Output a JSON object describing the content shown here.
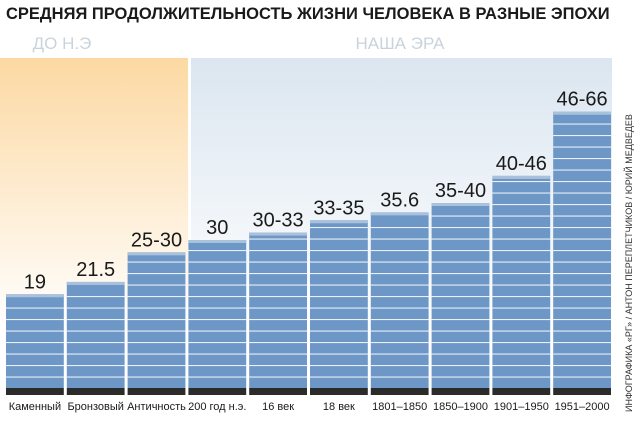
{
  "title": "СРЕДНЯЯ ПРОДОЛЖИТЕЛЬНОСТЬ ЖИЗНИ ЧЕЛОВЕКА В РАЗНЫЕ ЭПОХИ",
  "eras": {
    "bc": "ДО Н.Э",
    "ad": "НАША ЭРА"
  },
  "credit": "ИНФОГРАФИКА «РГ» / АНТОН ПЕРЕПЛЕТЧИКОВ / ЮРИЙ МЕДВЕДЕВ",
  "colors": {
    "bar": "#6d97c6",
    "bar_stripe": "#ffffff",
    "bar_cap": "#a9c1db",
    "base": "#2b2b2b",
    "bc_band": "#fde7c2",
    "ad_band": "#e6eef5",
    "era_text": "#c7d4e0",
    "label": "#1a1a1a"
  },
  "chart_data": {
    "type": "bar",
    "title": "СРЕДНЯЯ ПРОДОЛЖИТЕЛЬНОСТЬ ЖИЗНИ ЧЕЛОВЕКА В РАЗНЫЕ ЭПОХИ",
    "categories": [
      "Каменный",
      "Бронзовый",
      "Античность",
      "200 год н.э.",
      "16 век",
      "18 век",
      "1801–1850",
      "1850–1900",
      "1901–1950",
      "1951–2000"
    ],
    "value_labels": [
      "19",
      "21.5",
      "25-30",
      "30",
      "30-33",
      "33-35",
      "35.6",
      "35-40",
      "40-46",
      "46-66"
    ],
    "values": [
      19,
      21.5,
      27.5,
      30,
      31.5,
      34,
      35.6,
      37.5,
      43,
      56
    ],
    "xlabel": "",
    "ylabel": "",
    "ylim": [
      0,
      60
    ],
    "grid": false,
    "legend": "none"
  }
}
